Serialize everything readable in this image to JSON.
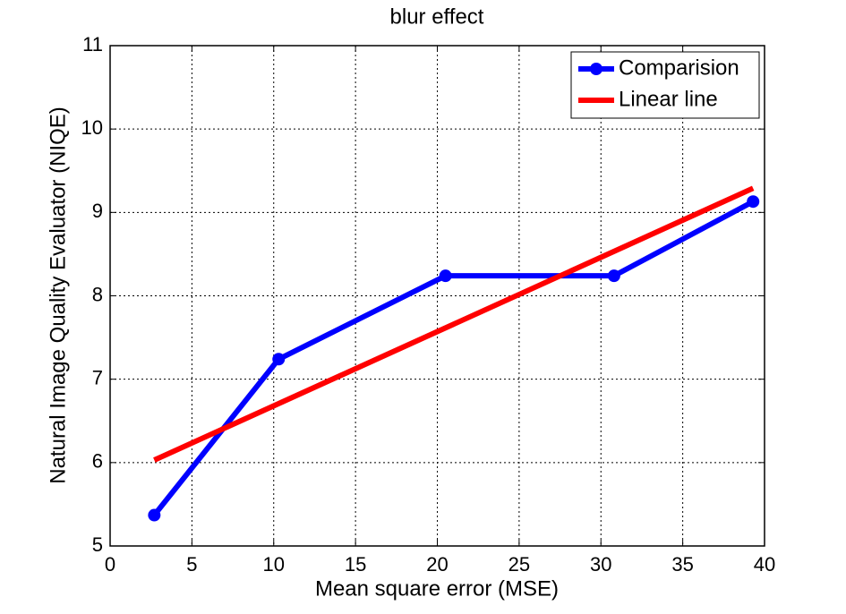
{
  "chart_data": {
    "type": "line",
    "title": "blur effect",
    "x_label": "Mean square error (MSE)",
    "y_label": "Natural Image Quality Evaluator (NIQE)",
    "xlim": [
      0,
      40
    ],
    "xticks": [
      0,
      5,
      10,
      15,
      20,
      25,
      30,
      35,
      40
    ],
    "ylim": [
      5,
      11
    ],
    "yticks": [
      5,
      6,
      7,
      8,
      9,
      10,
      11
    ],
    "grid": true,
    "legend": "northeast",
    "series": [
      {
        "name": "Comparision",
        "color": "#0000ff",
        "marker": "o",
        "x": [
          2.7,
          10.3,
          20.5,
          30.8,
          39.3
        ],
        "values": [
          5.37,
          7.24,
          8.24,
          8.24,
          9.13
        ]
      },
      {
        "name": "Linear line",
        "color": "#ff0000",
        "x": [
          2.7,
          39.3
        ],
        "values": [
          6.03,
          9.29
        ]
      }
    ]
  }
}
